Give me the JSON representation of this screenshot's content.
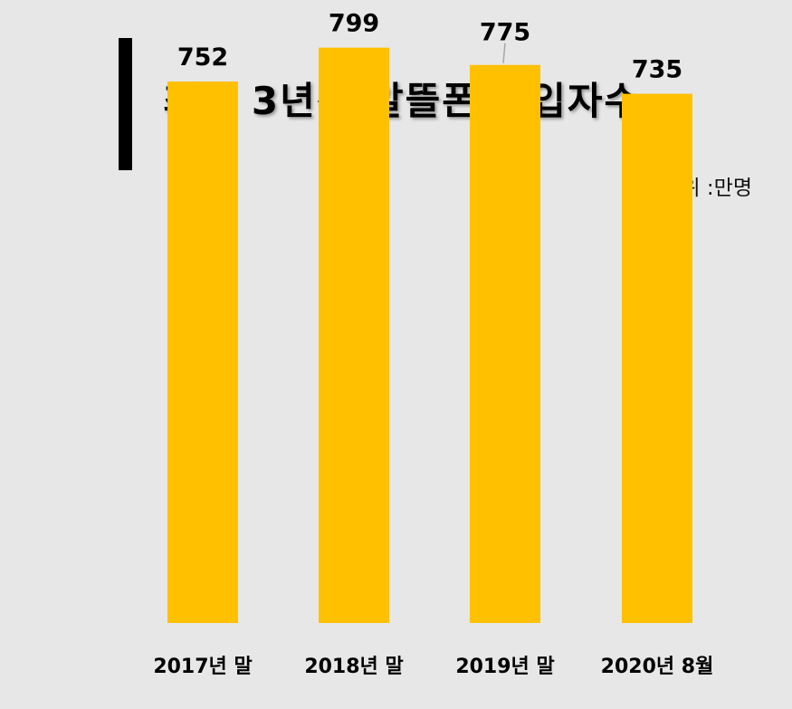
{
  "header": {
    "title": "최근 3년간 알뜰폰 가입자수",
    "unit": "단위 :만명"
  },
  "chart_data": {
    "type": "bar",
    "title": "최근 3년간 알뜰폰 가입자수",
    "unit": "단위 :만명",
    "categories": [
      "2017년 말",
      "2018년 말",
      "2019년 말",
      "2020년 8월"
    ],
    "values": [
      752,
      799,
      775,
      735
    ],
    "value_labels": [
      "752",
      "799",
      "775",
      "735"
    ],
    "ylim": [
      0,
      830
    ],
    "grid": false,
    "legend": "none",
    "bar_color": "#FFC000"
  }
}
